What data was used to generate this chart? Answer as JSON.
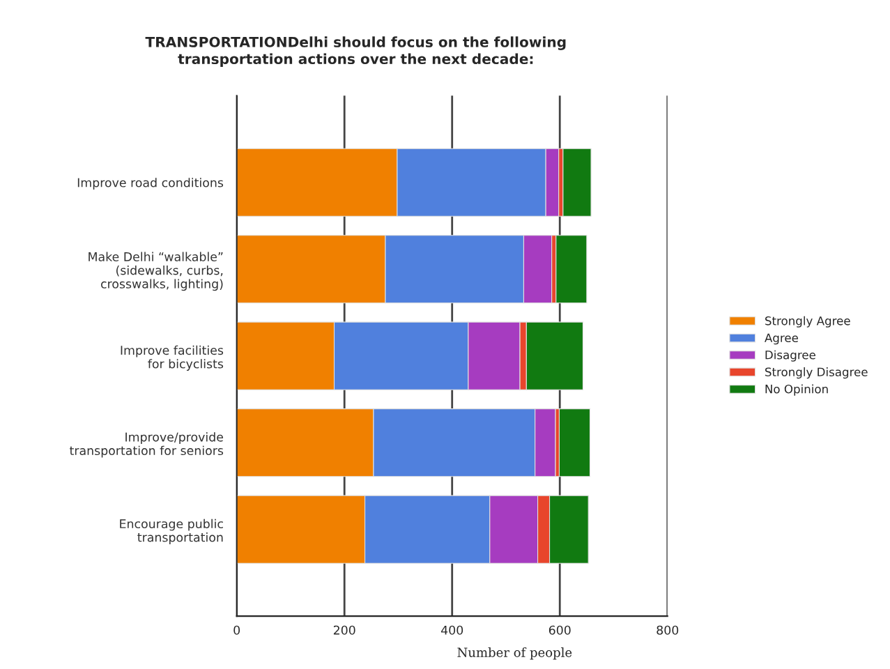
{
  "chart_data": {
    "type": "bar",
    "orientation": "horizontal",
    "stacked": true,
    "title": "TRANSPORTATIONDelhi should focus on the following\ntransportation actions over the next decade:",
    "xlabel": "Number of people",
    "categories": [
      "Improve road conditions",
      "Make Delhi “walkable”\n(sidewalks, curbs,\ncrosswalks, lighting)",
      "Improve facilities\nfor bicyclists",
      "Improve/provide\ntransportation for seniors",
      "Encourage public\ntransportation"
    ],
    "series": [
      {
        "name": "Strongly Agree",
        "color": "#f08000",
        "values": [
          298,
          276,
          181,
          254,
          238
        ]
      },
      {
        "name": "Agree",
        "color": "#5080dd",
        "values": [
          276,
          257,
          249,
          300,
          232
        ]
      },
      {
        "name": "Disagree",
        "color": "#a63cc0",
        "values": [
          24,
          52,
          96,
          38,
          89
        ]
      },
      {
        "name": "Strongly Disagree",
        "color": "#e8452c",
        "values": [
          8,
          8,
          12,
          7,
          22
        ]
      },
      {
        "name": "No Opinion",
        "color": "#117a11",
        "values": [
          52,
          57,
          105,
          57,
          72
        ]
      }
    ],
    "xlim": [
      0,
      800
    ],
    "xticks": [
      0,
      200,
      400,
      600,
      800
    ],
    "grid": "x",
    "legend": "right"
  }
}
